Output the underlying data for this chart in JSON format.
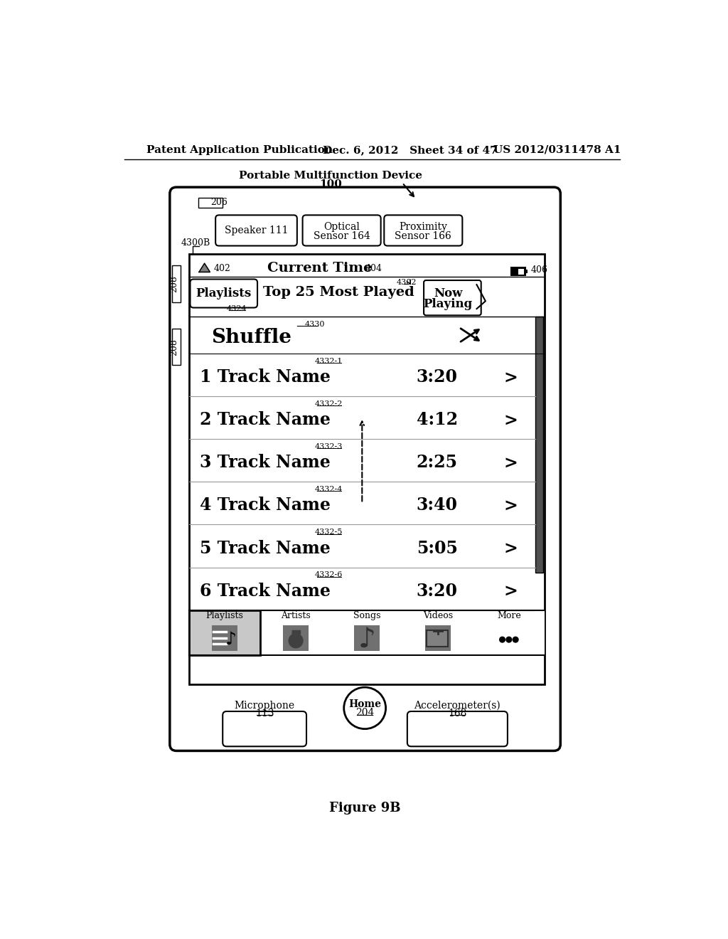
{
  "header_left": "Patent Application Publication",
  "header_mid": "Dec. 6, 2012   Sheet 34 of 47",
  "header_right": "US 2012/0311478 A1",
  "device_label": "Portable Multifunction Device",
  "device_num": "100",
  "label_206": "206",
  "label_208a": "208",
  "label_208b": "208",
  "label_4300B": "4300B",
  "status_signal": "402",
  "status_time": "Current Time",
  "status_time_num": "404",
  "status_battery": "406",
  "playlists_btn": "Playlists",
  "playlists_num": "4324",
  "playlist_title": "Top 25 Most Played",
  "label_4302": "4302",
  "shuffle_text": "Shuffle",
  "label_4330": "4330",
  "tracks": [
    {
      "num": "1",
      "label": "4332-1",
      "time": "3:20"
    },
    {
      "num": "2",
      "label": "4332-2",
      "time": "4:12"
    },
    {
      "num": "3",
      "label": "4332-3",
      "time": "2:25"
    },
    {
      "num": "4",
      "label": "4332-4",
      "time": "3:40"
    },
    {
      "num": "5",
      "label": "4332-5",
      "time": "5:05"
    },
    {
      "num": "6",
      "label": "4332-6",
      "time": "3:20"
    }
  ],
  "tab_items": [
    "Playlists",
    "Artists",
    "Songs",
    "Videos",
    "More"
  ],
  "figure_label": "Figure 9B",
  "bg_color": "#ffffff",
  "fg_color": "#000000"
}
